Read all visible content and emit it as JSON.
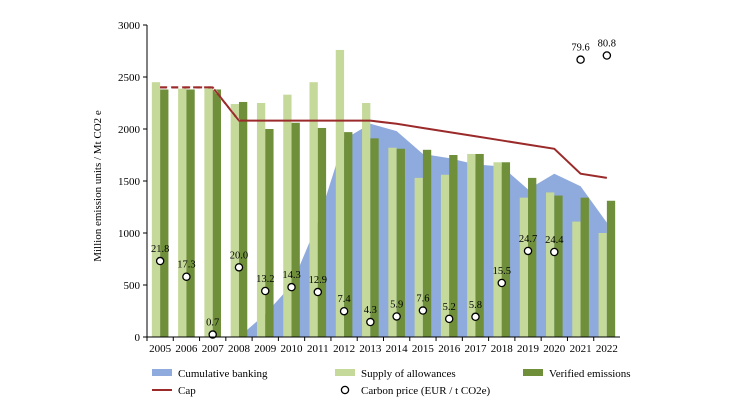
{
  "chart_data": {
    "type": "bar",
    "ylabel": "Million emission units / Mt CO2 e",
    "ylim": [
      0,
      3000
    ],
    "yticks": [
      0,
      500,
      1000,
      1500,
      2000,
      2500,
      3000
    ],
    "grid": false,
    "categories": [
      "2005",
      "2006",
      "2007",
      "2008",
      "2009",
      "2010",
      "2011",
      "2012",
      "2013",
      "2014",
      "2015",
      "2016",
      "2017",
      "2018",
      "2019",
      "2020",
      "2021",
      "2022"
    ],
    "series": [
      {
        "name": "Cumulative banking",
        "type": "area",
        "color": "#8faadc",
        "values": [
          null,
          null,
          null,
          0,
          220,
          500,
          1100,
          1900,
          2050,
          1980,
          1760,
          1720,
          1660,
          1640,
          1420,
          1570,
          1450,
          1100
        ]
      },
      {
        "name": "Supply of allowances",
        "type": "bar",
        "color": "#c5d99a",
        "values": [
          2450,
          2400,
          2400,
          2240,
          2250,
          2330,
          2450,
          2760,
          2250,
          1820,
          1530,
          1560,
          1760,
          1680,
          1340,
          1390,
          1110,
          1000
        ]
      },
      {
        "name": "Verified emissions",
        "type": "bar",
        "color": "#6f8f3a",
        "values": [
          2380,
          2380,
          2380,
          2260,
          2000,
          2060,
          2010,
          1970,
          1910,
          1810,
          1800,
          1750,
          1760,
          1680,
          1530,
          1360,
          1340,
          1310
        ]
      },
      {
        "name": "Cap",
        "type": "line",
        "color": "#9b2a2a",
        "values": [
          2400,
          2400,
          2400,
          2080,
          2080,
          2080,
          2080,
          2080,
          2080,
          2050,
          2010,
          1970,
          1930,
          1890,
          1850,
          1810,
          1570,
          1530
        ]
      },
      {
        "name": "Carbon price (EUR / t CO2e)",
        "type": "scatter",
        "values": [
          21.8,
          17.3,
          0.7,
          20.0,
          13.2,
          14.3,
          12.9,
          7.4,
          4.3,
          5.9,
          7.6,
          5.2,
          5.8,
          15.5,
          24.7,
          24.4,
          79.6,
          80.8
        ],
        "labels": [
          "21.8",
          "17.3",
          "0.7",
          "20.0",
          "13.2",
          "14.3",
          "12.9",
          "7.4",
          "4.3",
          "5.9",
          "7.6",
          "5.2",
          "5.8",
          "15.5",
          "24.7",
          "24.4",
          "79.6",
          "80.8"
        ]
      }
    ],
    "legend": {
      "placement": "bottom",
      "items": [
        {
          "label": "Cumulative banking",
          "symbol": "area",
          "color": "#8faadc"
        },
        {
          "label": "Supply of allowances",
          "symbol": "bar",
          "color": "#c5d99a"
        },
        {
          "label": "Verified emissions",
          "symbol": "bar",
          "color": "#6f8f3a"
        },
        {
          "label": "Cap",
          "symbol": "line",
          "color": "#9b2a2a"
        },
        {
          "label": "Carbon price (EUR / t CO2e)",
          "symbol": "circle",
          "color": "#000000"
        }
      ]
    }
  }
}
